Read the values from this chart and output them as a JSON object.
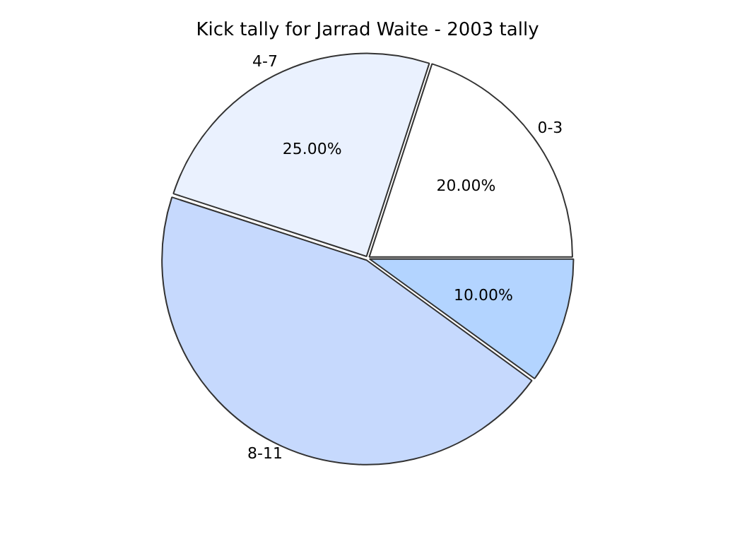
{
  "chart_data": {
    "type": "pie",
    "title": "Kick tally for Jarrad Waite - 2003 tally",
    "categories": [
      "0-3",
      null,
      "8-11",
      "4-7"
    ],
    "values": [
      20,
      10,
      45,
      25
    ],
    "value_labels": [
      "20.00%",
      "10.00%",
      null,
      "25.00%"
    ],
    "colors": [
      "#ffffff",
      "#b3d4ff",
      "#c6d9fd",
      "#eaf1fe"
    ],
    "legend": false
  }
}
